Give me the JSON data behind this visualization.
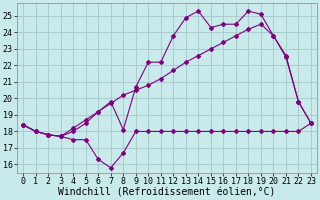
{
  "background_color": "#c8eaea",
  "grid_color": "#aacccc",
  "line_color": "#800080",
  "xlabel": "Windchill (Refroidissement éolien,°C)",
  "xlim": [
    -0.5,
    23.5
  ],
  "ylim": [
    15.5,
    25.8
  ],
  "yticks": [
    16,
    17,
    18,
    19,
    20,
    21,
    22,
    23,
    24,
    25
  ],
  "xticks": [
    0,
    1,
    2,
    3,
    4,
    5,
    6,
    7,
    8,
    9,
    10,
    11,
    12,
    13,
    14,
    15,
    16,
    17,
    18,
    19,
    20,
    21,
    22,
    23
  ],
  "line1_x": [
    0,
    1,
    2,
    3,
    4,
    5,
    6,
    7,
    8,
    9,
    10,
    11,
    12,
    13,
    14,
    15,
    16,
    17,
    18,
    19,
    20,
    21,
    22,
    23
  ],
  "line1_y": [
    18.4,
    18.0,
    17.8,
    17.7,
    17.5,
    17.5,
    16.3,
    15.8,
    16.7,
    18.0,
    18.0,
    18.0,
    18.0,
    18.0,
    18.0,
    18.0,
    18.0,
    18.0,
    18.0,
    18.0,
    18.0,
    18.0,
    18.0,
    18.5
  ],
  "line2_x": [
    0,
    1,
    2,
    3,
    4,
    5,
    6,
    7,
    8,
    9,
    10,
    11,
    12,
    13,
    14,
    15,
    16,
    17,
    18,
    19,
    20,
    21,
    22,
    23
  ],
  "line2_y": [
    18.4,
    18.0,
    17.8,
    17.7,
    18.2,
    18.7,
    19.2,
    19.7,
    20.2,
    20.5,
    20.8,
    21.2,
    21.7,
    22.2,
    22.6,
    23.0,
    23.4,
    23.8,
    24.2,
    24.5,
    23.8,
    22.5,
    19.8,
    18.5
  ],
  "line3_x": [
    0,
    1,
    2,
    3,
    4,
    5,
    6,
    7,
    8,
    9,
    10,
    11,
    12,
    13,
    14,
    15,
    16,
    17,
    18,
    19,
    20,
    21,
    22,
    23
  ],
  "line3_y": [
    18.4,
    18.0,
    17.8,
    17.7,
    18.0,
    18.5,
    19.2,
    19.8,
    18.1,
    20.7,
    22.2,
    22.2,
    23.8,
    24.9,
    25.3,
    24.3,
    24.5,
    24.5,
    25.3,
    25.1,
    23.8,
    22.6,
    19.8,
    18.5
  ],
  "xlabel_fontsize": 7,
  "tick_fontsize": 6,
  "figsize": [
    3.2,
    2.0
  ],
  "dpi": 100
}
